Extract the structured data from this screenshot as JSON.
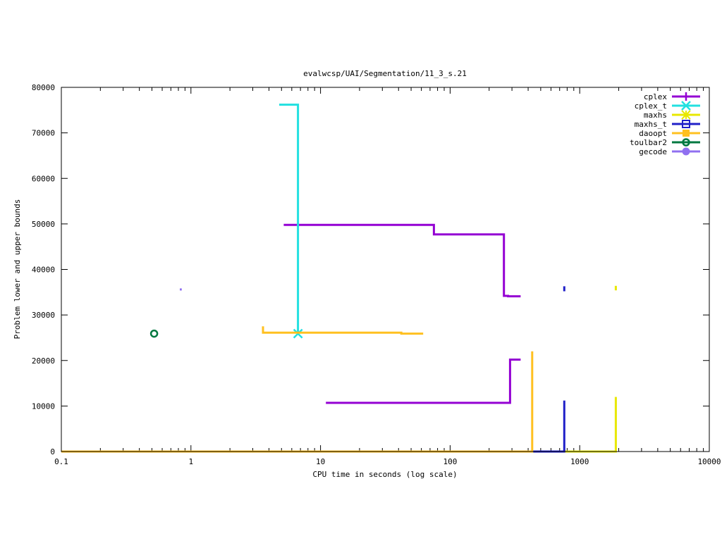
{
  "chart_data": {
    "type": "line",
    "title": "evalwcsp/UAI/Segmentation/11_3_s.21",
    "xlabel": "CPU time in seconds (log scale)",
    "ylabel": "Problem lower and upper bounds",
    "xscale": "log",
    "xlim": [
      0.1,
      10000
    ],
    "ylim": [
      0,
      80000
    ],
    "xticks": [
      {
        "value": 0.1,
        "label": "0.1"
      },
      {
        "value": 1,
        "label": "1"
      },
      {
        "value": 10,
        "label": "10"
      },
      {
        "value": 100,
        "label": "100"
      },
      {
        "value": 1000,
        "label": "1000"
      },
      {
        "value": 10000,
        "label": "10000"
      }
    ],
    "yticks": [
      {
        "value": 0,
        "label": "0"
      },
      {
        "value": 10000,
        "label": "10000"
      },
      {
        "value": 20000,
        "label": "20000"
      },
      {
        "value": 30000,
        "label": "30000"
      },
      {
        "value": 40000,
        "label": "40000"
      },
      {
        "value": 50000,
        "label": "50000"
      },
      {
        "value": 60000,
        "label": "60000"
      },
      {
        "value": 70000,
        "label": "70000"
      },
      {
        "value": 80000,
        "label": "80000"
      }
    ],
    "grid": false,
    "legend_position": "top-right",
    "series": [
      {
        "name": "cplex",
        "color": "#9400d3",
        "marker": "plus",
        "paths": [
          [
            [
              5.2,
              49800
            ],
            [
              75,
              49800
            ],
            [
              75,
              47700
            ],
            [
              260,
              47700
            ],
            [
              260,
              34200
            ],
            [
              280,
              34200
            ],
            [
              280,
              34100
            ],
            [
              350,
              34100
            ]
          ],
          [
            [
              11,
              10700
            ],
            [
              290,
              10700
            ],
            [
              290,
              20200
            ],
            [
              350,
              20200
            ]
          ]
        ],
        "markers": []
      },
      {
        "name": "cplex_t",
        "color": "#22e0e0",
        "marker": "x",
        "paths": [
          [
            [
              4.8,
              76200
            ],
            [
              6.7,
              76200
            ],
            [
              6.7,
              25900
            ]
          ]
        ],
        "markers": [
          [
            6.7,
            25900
          ]
        ]
      },
      {
        "name": "maxhs",
        "color": "#e8e800",
        "marker": "star",
        "paths": [
          [
            [
              0.1,
              0
            ],
            [
              1900,
              0
            ],
            [
              1900,
              12000
            ]
          ],
          [
            [
              1900,
              35400
            ],
            [
              1900,
              36400
            ]
          ]
        ],
        "markers": []
      },
      {
        "name": "maxhs_t",
        "color": "#2020c8",
        "marker": "square",
        "paths": [
          [
            [
              0.1,
              0
            ],
            [
              760,
              0
            ],
            [
              760,
              11200
            ]
          ],
          [
            [
              760,
              35200
            ],
            [
              760,
              36300
            ]
          ]
        ],
        "markers": []
      },
      {
        "name": "daoopt",
        "color": "#ffc020",
        "marker": "filled-square",
        "paths": [
          [
            [
              0.1,
              0
            ],
            [
              430,
              0
            ],
            [
              430,
              22000
            ]
          ],
          [
            [
              3.6,
              27500
            ],
            [
              3.6,
              26100
            ],
            [
              42,
              26100
            ],
            [
              42,
              25900
            ],
            [
              62,
              25900
            ]
          ]
        ],
        "markers": []
      },
      {
        "name": "toulbar2",
        "color": "#007840",
        "marker": "circle",
        "paths": [],
        "markers": [
          [
            0.52,
            25900
          ]
        ]
      },
      {
        "name": "gecode",
        "color": "#9070f0",
        "marker": "filled-circle",
        "paths": [
          [
            [
              0.82,
              35600
            ],
            [
              0.85,
              35600
            ]
          ]
        ],
        "markers": []
      }
    ]
  }
}
